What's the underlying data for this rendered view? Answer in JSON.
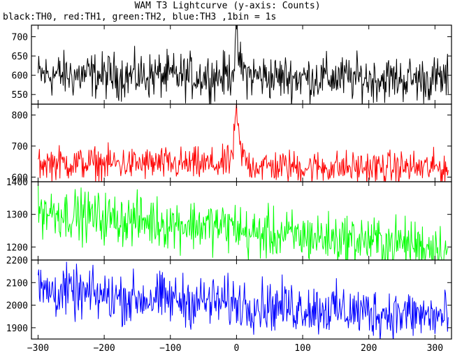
{
  "chart_data": {
    "type": "line",
    "title": "WAM T3 Lightcurve (y-axis: Counts)",
    "subtitle": "black:TH0, red:TH1, green:TH2, blue:TH3 ,1bin = 1s",
    "x_range": [
      -310,
      325
    ],
    "x_ticks": [
      -300,
      -200,
      -100,
      0,
      100,
      200,
      300
    ],
    "x_tick_labels": [
      "−300",
      "−200",
      "−100",
      "0",
      "100",
      "200",
      "300"
    ],
    "grid": false,
    "series": [
      {
        "color": "#000000",
        "ylim": [
          525,
          730
        ],
        "y_ticks": [
          550,
          600,
          650,
          700
        ],
        "x": [
          -300,
          -280,
          -260,
          -240,
          -220,
          -200,
          -180,
          -160,
          -140,
          -120,
          -100,
          -80,
          -60,
          -40,
          -20,
          -10,
          -5,
          -2,
          0,
          2,
          5,
          10,
          20,
          40,
          60,
          80,
          100,
          120,
          140,
          160,
          180,
          200,
          220,
          240,
          260,
          280,
          300,
          320
        ],
        "values": [
          600,
          602,
          600,
          599,
          601,
          598,
          600,
          597,
          598,
          600,
          597,
          598,
          597,
          598,
          598,
          605,
          620,
          660,
          725,
          670,
          630,
          610,
          600,
          596,
          594,
          595,
          594,
          593,
          594,
          592,
          592,
          591,
          590,
          591,
          590,
          589,
          590,
          590
        ],
        "noise": 42
      },
      {
        "color": "#ff0000",
        "ylim": [
          585,
          835
        ],
        "y_ticks": [
          600,
          700,
          800
        ],
        "x": [
          -300,
          -280,
          -260,
          -240,
          -220,
          -200,
          -180,
          -160,
          -140,
          -120,
          -100,
          -80,
          -60,
          -40,
          -20,
          -10,
          -5,
          -2,
          0,
          2,
          5,
          10,
          20,
          40,
          60,
          80,
          100,
          120,
          140,
          160,
          180,
          200,
          220,
          240,
          260,
          280,
          300,
          320
        ],
        "values": [
          645,
          646,
          645,
          644,
          645,
          643,
          644,
          642,
          643,
          643,
          641,
          641,
          640,
          640,
          641,
          650,
          690,
          760,
          820,
          760,
          700,
          665,
          640,
          636,
          634,
          634,
          632,
          632,
          632,
          631,
          630,
          631,
          630,
          630,
          631,
          629,
          630,
          630
        ],
        "noise": 38
      },
      {
        "color": "#00ff00",
        "ylim": [
          1160,
          1400
        ],
        "y_ticks": [
          1200,
          1300,
          1400
        ],
        "x": [
          -300,
          -280,
          -260,
          -240,
          -220,
          -200,
          -180,
          -160,
          -140,
          -120,
          -100,
          -80,
          -60,
          -40,
          -20,
          -10,
          0,
          10,
          20,
          40,
          60,
          80,
          100,
          120,
          140,
          160,
          180,
          200,
          220,
          240,
          260,
          280,
          300,
          320
        ],
        "values": [
          1315,
          1308,
          1302,
          1298,
          1293,
          1290,
          1285,
          1282,
          1280,
          1276,
          1272,
          1270,
          1268,
          1265,
          1262,
          1262,
          1265,
          1245,
          1238,
          1240,
          1238,
          1234,
          1232,
          1230,
          1226,
          1224,
          1222,
          1220,
          1215,
          1213,
          1210,
          1205,
          1200,
          1195
        ],
        "noise": 55
      },
      {
        "color": "#0000ff",
        "ylim": [
          1850,
          2200
        ],
        "y_ticks": [
          1900,
          2000,
          2100,
          2200
        ],
        "x": [
          -300,
          -280,
          -260,
          -240,
          -220,
          -200,
          -180,
          -160,
          -140,
          -120,
          -100,
          -80,
          -60,
          -40,
          -20,
          0,
          20,
          40,
          60,
          80,
          100,
          120,
          140,
          160,
          180,
          200,
          220,
          240,
          260,
          280,
          300,
          320
        ],
        "values": [
          2070,
          2060,
          2058,
          2048,
          2045,
          2040,
          2035,
          2030,
          2030,
          2028,
          2025,
          2022,
          2018,
          2015,
          2012,
          2010,
          2005,
          2000,
          1995,
          1992,
          1990,
          1985,
          1982,
          1975,
          1972,
          1968,
          1965,
          1962,
          1958,
          1955,
          1950,
          1945
        ],
        "noise": 80
      }
    ]
  }
}
